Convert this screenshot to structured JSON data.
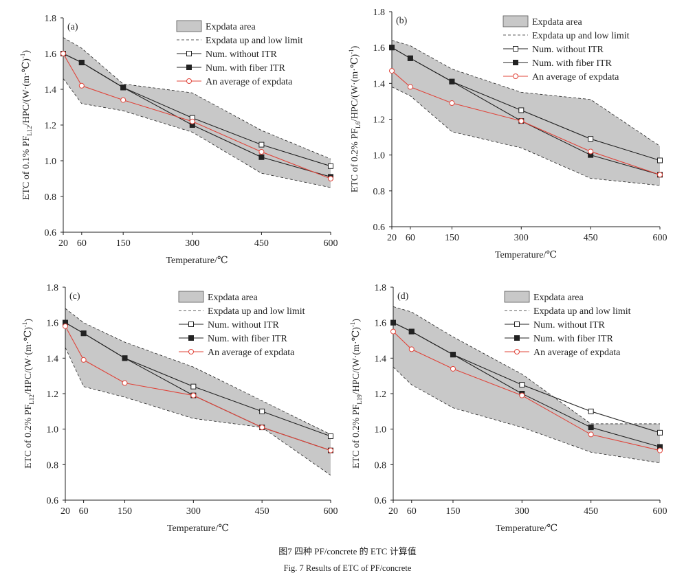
{
  "caption_cn": "图7   四种 PF/concrete 的 ETC 计算值",
  "caption_en": "Fig. 7   Results of ETC of PF/concrete",
  "colors": {
    "area": "#c8c8c8",
    "black": "#222222",
    "red": "#e0443a"
  },
  "chart_data": [
    {
      "type": "line",
      "panel": "(a)",
      "xlabel": "Temperature/℃",
      "ylabel": "ETC of 0.1% PF_{L12}/HPC/(W·(m·℃)^{-1})",
      "xticks": [
        20,
        60,
        150,
        300,
        450,
        600
      ],
      "ylim": [
        0.6,
        1.8
      ],
      "yticks": [
        "0.6",
        "0.8",
        "1.0",
        "1.2",
        "1.4",
        "1.6",
        "1.8"
      ],
      "legend": [
        "Expdata area",
        "Expdata up and low limit",
        "Num. without ITR",
        "Num. with fiber ITR",
        "An average of expdata"
      ],
      "upper": [
        [
          20,
          1.69
        ],
        [
          60,
          1.63
        ],
        [
          150,
          1.43
        ],
        [
          300,
          1.38
        ],
        [
          450,
          1.17
        ],
        [
          600,
          1.01
        ]
      ],
      "lower": [
        [
          20,
          1.46
        ],
        [
          60,
          1.32
        ],
        [
          150,
          1.28
        ],
        [
          300,
          1.16
        ],
        [
          450,
          0.93
        ],
        [
          600,
          0.85
        ]
      ],
      "series": [
        {
          "name": "Num. without ITR",
          "values": [
            [
              20,
              1.6
            ],
            [
              60,
              1.55
            ],
            [
              150,
              1.41
            ],
            [
              300,
              1.24
            ],
            [
              450,
              1.09
            ],
            [
              600,
              0.97
            ]
          ]
        },
        {
          "name": "Num. with fiber ITR",
          "values": [
            [
              20,
              1.6
            ],
            [
              60,
              1.55
            ],
            [
              150,
              1.41
            ],
            [
              300,
              1.2
            ],
            [
              450,
              1.02
            ],
            [
              600,
              0.91
            ]
          ]
        },
        {
          "name": "An average of expdata",
          "values": [
            [
              20,
              1.6
            ],
            [
              60,
              1.42
            ],
            [
              150,
              1.34
            ],
            [
              300,
              1.22
            ],
            [
              450,
              1.05
            ],
            [
              600,
              0.9
            ]
          ]
        }
      ]
    },
    {
      "type": "line",
      "panel": "(b)",
      "xlabel": "Temperature/℃",
      "ylabel": "ETC of 0.2% PF_{L6}/HPC/(W·(m·℃)^{-1})",
      "xticks": [
        20,
        60,
        150,
        300,
        450,
        600
      ],
      "ylim": [
        0.6,
        1.8
      ],
      "yticks": [
        "0.6",
        "0.8",
        "1.0",
        "1.2",
        "1.4",
        "1.6",
        "1.8"
      ],
      "legend": [
        "Expdata area",
        "Expdata up and low limit",
        "Num. without ITR",
        "Num. with fiber ITR",
        "An average of expdata"
      ],
      "upper": [
        [
          20,
          1.64
        ],
        [
          60,
          1.61
        ],
        [
          150,
          1.48
        ],
        [
          300,
          1.35
        ],
        [
          450,
          1.31
        ],
        [
          600,
          1.05
        ]
      ],
      "lower": [
        [
          20,
          1.38
        ],
        [
          60,
          1.33
        ],
        [
          150,
          1.13
        ],
        [
          300,
          1.04
        ],
        [
          450,
          0.87
        ],
        [
          600,
          0.83
        ]
      ],
      "series": [
        {
          "name": "Num. without ITR",
          "values": [
            [
              20,
              1.6
            ],
            [
              60,
              1.54
            ],
            [
              150,
              1.41
            ],
            [
              300,
              1.25
            ],
            [
              450,
              1.09
            ],
            [
              600,
              0.97
            ]
          ]
        },
        {
          "name": "Num. with fiber ITR",
          "values": [
            [
              20,
              1.6
            ],
            [
              60,
              1.54
            ],
            [
              150,
              1.41
            ],
            [
              300,
              1.19
            ],
            [
              450,
              1.0
            ],
            [
              600,
              0.89
            ]
          ]
        },
        {
          "name": "An average of expdata",
          "values": [
            [
              20,
              1.47
            ],
            [
              60,
              1.38
            ],
            [
              150,
              1.29
            ],
            [
              300,
              1.19
            ],
            [
              450,
              1.02
            ],
            [
              600,
              0.89
            ]
          ]
        }
      ]
    },
    {
      "type": "line",
      "panel": "(c)",
      "xlabel": "Temperature/℃",
      "ylabel": "ETC of 0.2% PF_{L12}/HPC/(W·(m·℃)^{-1})",
      "xticks": [
        20,
        60,
        150,
        300,
        450,
        600
      ],
      "ylim": [
        0.6,
        1.8
      ],
      "yticks": [
        "0.6",
        "0.8",
        "1.0",
        "1.2",
        "1.4",
        "1.6",
        "1.8"
      ],
      "legend": [
        "Expdata area",
        "Expdata up and low limit",
        "Num. without ITR",
        "Num. with fiber ITR",
        "An average of expdata"
      ],
      "upper": [
        [
          20,
          1.68
        ],
        [
          60,
          1.6
        ],
        [
          150,
          1.49
        ],
        [
          300,
          1.35
        ],
        [
          450,
          1.16
        ],
        [
          600,
          0.97
        ]
      ],
      "lower": [
        [
          20,
          1.46
        ],
        [
          60,
          1.24
        ],
        [
          150,
          1.18
        ],
        [
          300,
          1.06
        ],
        [
          450,
          1.01
        ],
        [
          600,
          0.74
        ]
      ],
      "series": [
        {
          "name": "Num. without ITR",
          "values": [
            [
              20,
              1.6
            ],
            [
              60,
              1.54
            ],
            [
              150,
              1.4
            ],
            [
              300,
              1.24
            ],
            [
              450,
              1.1
            ],
            [
              600,
              0.96
            ]
          ]
        },
        {
          "name": "Num. with fiber ITR",
          "values": [
            [
              20,
              1.6
            ],
            [
              60,
              1.54
            ],
            [
              150,
              1.4
            ],
            [
              300,
              1.19
            ],
            [
              450,
              1.01
            ],
            [
              600,
              0.88
            ]
          ]
        },
        {
          "name": "An average of expdata",
          "values": [
            [
              20,
              1.58
            ],
            [
              60,
              1.39
            ],
            [
              150,
              1.26
            ],
            [
              300,
              1.19
            ],
            [
              450,
              1.01
            ],
            [
              600,
              0.88
            ]
          ]
        }
      ]
    },
    {
      "type": "line",
      "panel": "(d)",
      "xlabel": "Temperature/℃",
      "ylabel": "ETC of 0.2% PF_{L19}/HPC/(W·(m·℃)^{-1})",
      "xticks": [
        20,
        60,
        150,
        300,
        450,
        600
      ],
      "ylim": [
        0.6,
        1.8
      ],
      "yticks": [
        "0.6",
        "0.8",
        "1.0",
        "1.2",
        "1.4",
        "1.6",
        "1.8"
      ],
      "legend": [
        "Expdata area",
        "Expdata up and low limit",
        "Num. without ITR",
        "Num. with fiber ITR",
        "An average of expdata"
      ],
      "upper": [
        [
          20,
          1.69
        ],
        [
          60,
          1.66
        ],
        [
          150,
          1.52
        ],
        [
          300,
          1.31
        ],
        [
          450,
          1.03
        ],
        [
          600,
          1.03
        ]
      ],
      "lower": [
        [
          20,
          1.35
        ],
        [
          60,
          1.25
        ],
        [
          150,
          1.12
        ],
        [
          300,
          1.01
        ],
        [
          450,
          0.87
        ],
        [
          600,
          0.81
        ]
      ],
      "series": [
        {
          "name": "Num. without ITR",
          "values": [
            [
              20,
              1.6
            ],
            [
              60,
              1.55
            ],
            [
              150,
              1.42
            ],
            [
              300,
              1.25
            ],
            [
              450,
              1.1
            ],
            [
              600,
              0.98
            ]
          ]
        },
        {
          "name": "Num. with fiber ITR",
          "values": [
            [
              20,
              1.6
            ],
            [
              60,
              1.55
            ],
            [
              150,
              1.42
            ],
            [
              300,
              1.2
            ],
            [
              450,
              1.01
            ],
            [
              600,
              0.9
            ]
          ]
        },
        {
          "name": "An average of expdata",
          "values": [
            [
              20,
              1.55
            ],
            [
              60,
              1.45
            ],
            [
              150,
              1.34
            ],
            [
              300,
              1.19
            ],
            [
              450,
              0.97
            ],
            [
              600,
              0.88
            ]
          ]
        }
      ]
    }
  ]
}
